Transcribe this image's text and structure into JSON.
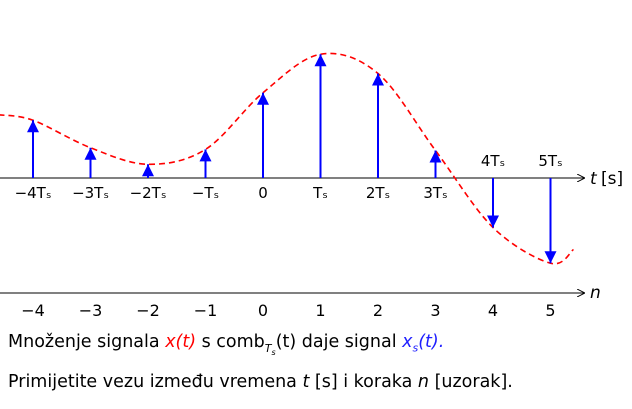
{
  "diagram": {
    "samples_n": [
      -4,
      -3,
      -2,
      -1,
      0,
      1,
      2,
      3,
      4,
      5
    ],
    "sample_values": [
      1.05,
      0.55,
      0.25,
      0.52,
      1.55,
      2.25,
      1.9,
      0.5,
      -0.9,
      -1.55
    ],
    "t_tick_labels": [
      "−4Tₛ",
      "−3Tₛ",
      "−2Tₛ",
      "−Tₛ",
      "0",
      "Tₛ",
      "2Tₛ",
      "3Tₛ",
      "4Tₛ",
      "5Tₛ"
    ],
    "n_tick_labels": [
      "−4",
      "−3",
      "−2",
      "−1",
      "0",
      "1",
      "2",
      "3",
      "4",
      "5"
    ],
    "t_axis_label": "t",
    "t_axis_unit": "[s]",
    "n_axis_label": "n",
    "colors": {
      "stems": "#0000ff",
      "signal": "#ff0000",
      "axes": "#000000"
    }
  },
  "caption1": {
    "part1": "Množenje signala ",
    "signal_x": "x(t)",
    "part2": " s comb",
    "sub": "T",
    "subsub": "s",
    "part3": "(t) daje signal ",
    "signal_xs": "x",
    "signal_xs_sub": "s",
    "signal_xs_arg": "(t)",
    "part4": "."
  },
  "caption2": {
    "part1": "Primijetite vezu između vremena ",
    "t": "t",
    "part2": " [s] i koraka ",
    "n": "n",
    "part3": " [uzorak]."
  }
}
